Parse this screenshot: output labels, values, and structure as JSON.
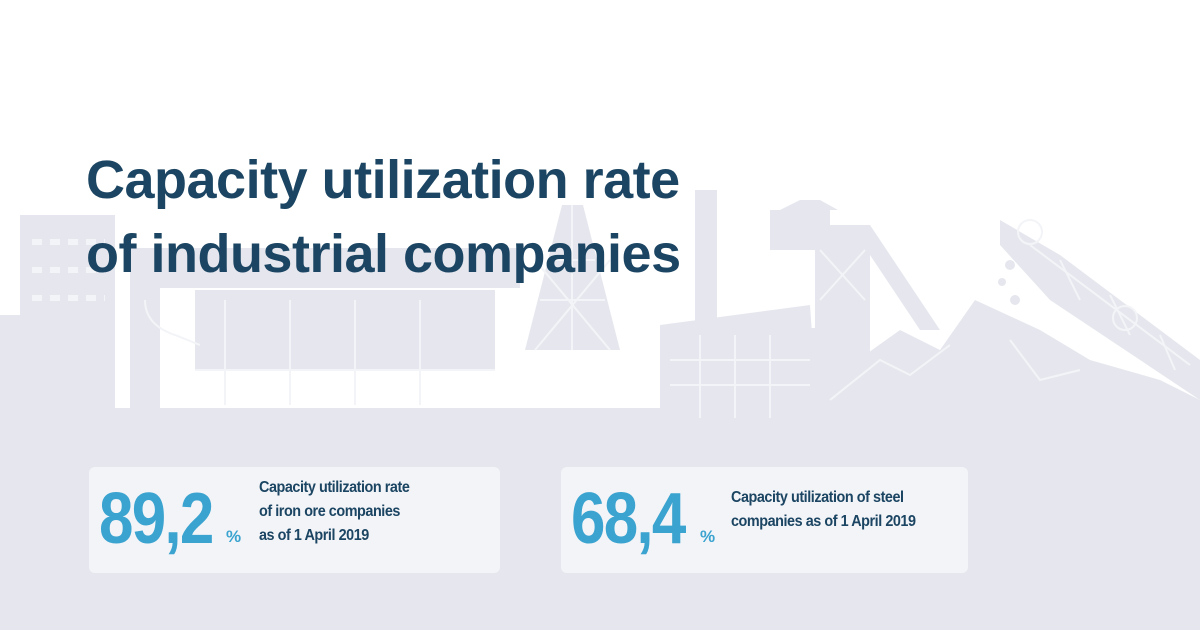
{
  "title": {
    "lines": [
      "Capacity utilization rate",
      "of industrial companies"
    ]
  },
  "stats": [
    {
      "value": "89,2",
      "unit": "%",
      "description_lines": [
        "Capacity utilization rate",
        "of iron ore companies",
        "as of 1 April 2019"
      ]
    },
    {
      "value": "68,4",
      "unit": "%",
      "description_lines": [
        "Capacity utilization of steel",
        "companies as of 1 April 2019"
      ]
    }
  ],
  "colors": {
    "title": "#1b4562",
    "accent": "#3aa3cf",
    "card_background": "#f3f4f8",
    "background_silhouette": "#e6e7ee",
    "background_detail": "#f3f4f7"
  },
  "background": {
    "icon": "industrial-skyline-illustration"
  }
}
